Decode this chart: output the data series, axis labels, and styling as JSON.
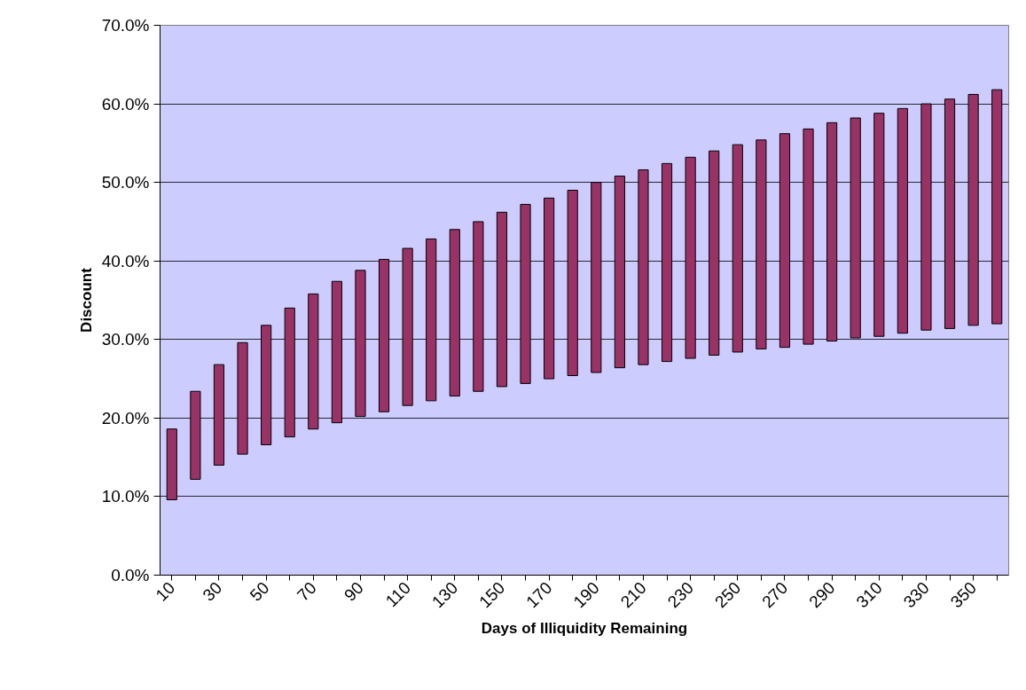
{
  "chart_data": {
    "type": "bar",
    "xlabel": "Days of Illiquidity Remaining",
    "ylabel": "Discount",
    "categories": [
      "10",
      null,
      "30",
      null,
      "50",
      null,
      "70",
      null,
      "90",
      null,
      "110",
      null,
      "130",
      null,
      "150",
      null,
      "170",
      null,
      "190",
      null,
      "210",
      null,
      "230",
      null,
      "250",
      null,
      "270",
      null,
      "290",
      null,
      "310",
      null,
      "330",
      null,
      "350",
      null
    ],
    "base": [
      9.6,
      12.2,
      14.0,
      15.4,
      16.6,
      17.6,
      18.6,
      19.4,
      20.2,
      20.8,
      21.6,
      22.2,
      22.8,
      23.4,
      24.0,
      24.4,
      25.0,
      25.4,
      25.8,
      26.4,
      26.8,
      27.2,
      27.6,
      28.0,
      28.4,
      28.8,
      29.0,
      29.4,
      29.8,
      30.2,
      30.4,
      30.8,
      31.2,
      31.4,
      31.8,
      32.0
    ],
    "values": [
      9.0,
      11.2,
      12.8,
      14.2,
      15.2,
      16.4,
      17.2,
      18.0,
      18.6,
      19.4,
      20.0,
      20.6,
      21.2,
      21.6,
      22.2,
      22.8,
      23.0,
      23.6,
      24.2,
      24.4,
      24.8,
      25.2,
      25.6,
      26.0,
      26.4,
      26.6,
      27.2,
      27.4,
      27.8,
      28.0,
      28.4,
      28.6,
      28.8,
      29.2,
      29.4,
      29.8
    ],
    "color": "#993366",
    "ylim": [
      0,
      70
    ],
    "yticks": [
      {
        "value": 0,
        "label": "0.0%"
      },
      {
        "value": 10,
        "label": "10.0%"
      },
      {
        "value": 20,
        "label": "20.0%"
      },
      {
        "value": 30,
        "label": "30.0%"
      },
      {
        "value": 40,
        "label": "40.0%"
      },
      {
        "value": 50,
        "label": "50.0%"
      },
      {
        "value": 60,
        "label": "60.0%"
      },
      {
        "value": 70,
        "label": "70.0%"
      }
    ],
    "grid": "y"
  }
}
